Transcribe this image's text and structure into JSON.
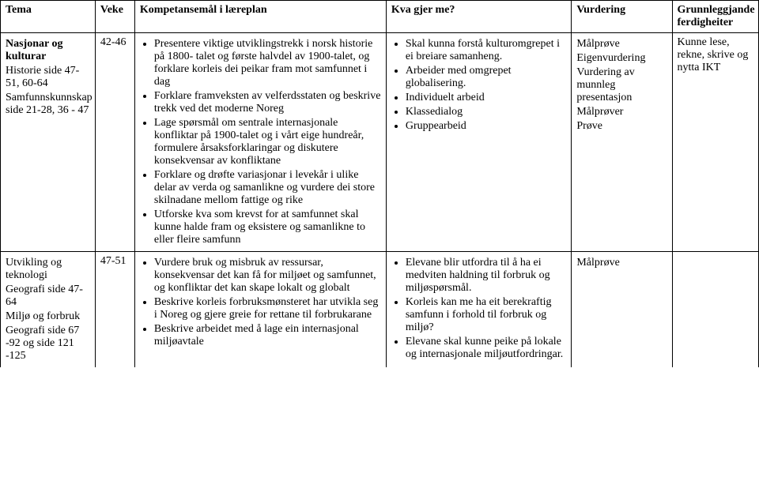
{
  "headers": {
    "tema": "Tema",
    "veke": "Veke",
    "komp": "Kompetansemål i læreplan",
    "kva": "Kva gjer me?",
    "vurd": "Vurdering",
    "grunn": "Grunnleggjande ferdigheiter"
  },
  "rows": [
    {
      "tema": {
        "title": "Nasjonar og kulturar",
        "lines": [
          "",
          "Historie side 47-51, 60-64",
          "Samfunnskunnskap side 21-28, 36 - 47"
        ]
      },
      "veke": "42-46",
      "komp": [
        "Presentere viktige utviklingstrekk i norsk historie på 1800- talet og første halvdel av 1900-talet, og forklare korleis dei peikar fram mot samfunnet i dag",
        "Forklare framveksten av velferdsstaten og beskrive trekk ved det moderne Noreg",
        "Lage spørsmål om sentrale internasjonale konfliktar på 1900-talet og i vårt eige hundreår, formulere årsaksforklaringar og diskutere konsekvensar av konfliktane",
        "Forklare og drøfte variasjonar i levekår i ulike delar av verda og samanlikne og vurdere dei store skilnadane mellom fattige og rike",
        "Utforske kva som krevst for at samfunnet skal kunne halde fram og eksistere og samanlikne to eller fleire samfunn"
      ],
      "kva": [
        "Skal kunna forstå kulturomgrepet i ei breiare samanheng.",
        "Arbeider med omgrepet globalisering.",
        "Individuelt arbeid",
        "Klassedialog",
        "Gruppearbeid"
      ],
      "vurd": [
        "Målprøve",
        "Eigenvurdering",
        "Vurdering av munnleg presentasjon",
        "Målprøver",
        "",
        "",
        "Prøve"
      ],
      "grunn": "Kunne lese, rekne, skrive og nytta IKT"
    },
    {
      "tema": {
        "title": "",
        "lines": [
          "Utvikling og teknologi",
          "Geografi side 47-64",
          "Miljø og forbruk",
          "Geografi side 67 -92 og side 121 -125"
        ]
      },
      "veke": "47-51",
      "komp": [
        "Vurdere bruk og misbruk av ressursar, konsekvensar det kan få for miljøet og samfunnet, og konfliktar det kan skape lokalt og globalt",
        "Beskrive korleis forbruksmønsteret har utvikla seg i Noreg og gjere greie for rettane til forbrukarane",
        "Beskrive arbeidet med å lage ein internasjonal miljøavtale"
      ],
      "kva": [
        "Elevane blir utfordra til å ha ei medviten haldning til forbruk og miljøspørsmål.",
        "Korleis kan me ha eit berekraftig samfunn i forhold til forbruk og miljø?",
        "Elevane skal kunne peike på lokale og internasjonale miljøutfordringar."
      ],
      "vurd": [
        "Målprøve"
      ],
      "grunn": ""
    }
  ]
}
